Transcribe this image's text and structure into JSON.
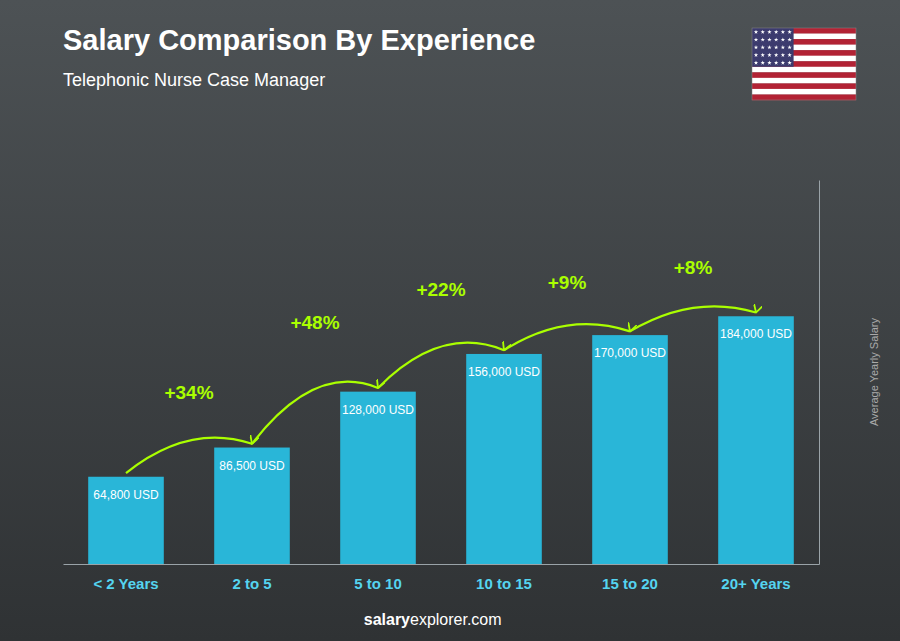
{
  "chart_data": {
    "type": "bar",
    "title": "Salary Comparison By Experience",
    "subtitle": "Telephonic Nurse Case Manager",
    "categories": [
      "< 2 Years",
      "2 to 5",
      "5 to 10",
      "10 to 15",
      "15 to 20",
      "20+ Years"
    ],
    "values": [
      64800,
      86500,
      128000,
      156000,
      170000,
      184000
    ],
    "value_labels": [
      "64,800 USD",
      "86,500 USD",
      "128,000 USD",
      "156,000 USD",
      "170,000 USD",
      "184,000 USD"
    ],
    "data_labels": true,
    "color": "#29b6d8",
    "ylim": [
      0,
      285200
    ],
    "ylabel": "Average Yearly Salary",
    "annotations": [
      "+34%",
      "+48%",
      "+22%",
      "+9%",
      "+8%"
    ],
    "watermark": [
      "salary",
      "explorer.com"
    ],
    "tick_labels": "x",
    "grid": false
  }
}
